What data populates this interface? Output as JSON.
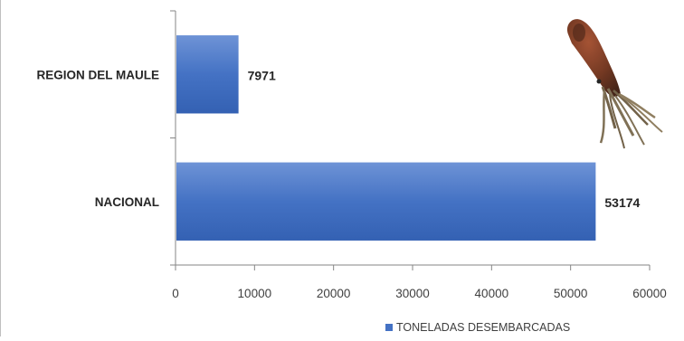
{
  "chart_data": {
    "type": "bar",
    "orientation": "horizontal",
    "categories": [
      "REGION DEL MAULE",
      "NACIONAL"
    ],
    "series": [
      {
        "name": "TONELADAS DESEMBARCADAS",
        "values": [
          7971,
          53174
        ],
        "color": "#4472c4"
      }
    ],
    "data_labels": [
      "7971",
      "53174"
    ],
    "xlim": [
      0,
      60000
    ],
    "x_ticks": [
      0,
      10000,
      20000,
      30000,
      40000,
      50000,
      60000
    ],
    "x_tick_labels": [
      "0",
      "10000",
      "20000",
      "30000",
      "40000",
      "50000",
      "60000"
    ],
    "grid": false,
    "legend": "bottom-right",
    "decoration": "squid-illustration"
  }
}
